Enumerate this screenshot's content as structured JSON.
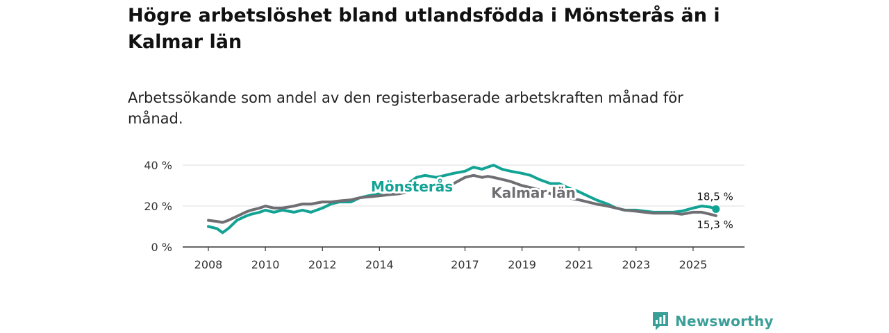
{
  "title": "Högre arbetslöshet bland utlandsfödda i Mönsterås än i Kalmar län",
  "subtitle": "Arbetssökande som andel av den registerbaserade arbetskraften månad för månad.",
  "brand": {
    "name": "Newsworthy",
    "icon": "newsworthy-logo-icon"
  },
  "colors": {
    "series_1": "#13a394",
    "series_2": "#6e6e73",
    "axis": "#333333",
    "grid": "#dddddd"
  },
  "chart_data": {
    "type": "line",
    "title": "Högre arbetslöshet bland utlandsfödda i Mönsterås än i Kalmar län",
    "subtitle": "Arbetssökande som andel av den registerbaserade arbetskraften månad för månad.",
    "xlabel": "",
    "ylabel": "",
    "xlim": [
      2008,
      2026
    ],
    "ylim": [
      0,
      40
    ],
    "y_ticks": [
      0,
      20,
      40
    ],
    "y_tick_labels": [
      "0 %",
      "20 %",
      "40 %"
    ],
    "x_ticks": [
      2008,
      2010,
      2012,
      2014,
      2017,
      2019,
      2021,
      2023,
      2025
    ],
    "x_tick_labels": [
      "2008",
      "2010",
      "2012",
      "2014",
      "2017",
      "2019",
      "2021",
      "2023",
      "2025"
    ],
    "grid": true,
    "series": [
      {
        "name": "Mönsterås",
        "label": "Mönsterås",
        "color": "#13a394",
        "end_label": "18,5 %",
        "x": [
          2008.0,
          2008.3,
          2008.5,
          2008.7,
          2009.0,
          2009.3,
          2009.5,
          2009.8,
          2010.0,
          2010.3,
          2010.6,
          2011.0,
          2011.3,
          2011.6,
          2012.0,
          2012.3,
          2012.6,
          2013.0,
          2013.3,
          2013.6,
          2014.0,
          2014.3,
          2014.7,
          2015.0,
          2015.3,
          2015.6,
          2016.0,
          2016.3,
          2016.6,
          2017.0,
          2017.3,
          2017.6,
          2017.8,
          2018.0,
          2018.3,
          2018.6,
          2019.0,
          2019.3,
          2019.6,
          2020.0,
          2020.3,
          2020.6,
          2021.0,
          2021.3,
          2021.6,
          2022.0,
          2022.3,
          2022.6,
          2023.0,
          2023.3,
          2023.6,
          2024.0,
          2024.3,
          2024.6,
          2025.0,
          2025.3,
          2025.6,
          2025.8
        ],
        "values": [
          10,
          9,
          7,
          9,
          13,
          15,
          16,
          17,
          18,
          17,
          18,
          17,
          18,
          17,
          19,
          21,
          22,
          22,
          24,
          25,
          26,
          28,
          29,
          31,
          34,
          35,
          34,
          35,
          36,
          37,
          39,
          38,
          39,
          40,
          38,
          37,
          36,
          35,
          33,
          31,
          31,
          29,
          27,
          25,
          23,
          21,
          19,
          18,
          18,
          17.5,
          17,
          17,
          17,
          17.5,
          19,
          20,
          19.5,
          18.5
        ]
      },
      {
        "name": "Kalmar län",
        "label": "Kalmar län",
        "color": "#6e6e73",
        "end_label": "15,3 %",
        "x": [
          2008.0,
          2008.3,
          2008.5,
          2008.7,
          2009.0,
          2009.3,
          2009.5,
          2009.8,
          2010.0,
          2010.3,
          2010.6,
          2011.0,
          2011.3,
          2011.6,
          2012.0,
          2012.3,
          2012.6,
          2013.0,
          2013.3,
          2013.6,
          2014.0,
          2014.3,
          2014.7,
          2015.0,
          2015.3,
          2015.6,
          2016.0,
          2016.3,
          2016.6,
          2017.0,
          2017.3,
          2017.6,
          2017.8,
          2018.0,
          2018.3,
          2018.6,
          2019.0,
          2019.3,
          2019.6,
          2020.0,
          2020.3,
          2020.6,
          2021.0,
          2021.3,
          2021.6,
          2022.0,
          2022.3,
          2022.6,
          2023.0,
          2023.3,
          2023.6,
          2024.0,
          2024.3,
          2024.6,
          2025.0,
          2025.3,
          2025.6,
          2025.8
        ],
        "values": [
          13,
          12.5,
          12,
          13,
          15,
          17,
          18,
          19,
          20,
          19,
          19,
          20,
          21,
          21,
          22,
          22,
          22.5,
          23,
          24,
          24.5,
          25,
          25.5,
          26,
          27,
          28,
          29,
          30,
          30,
          31,
          34,
          35,
          34,
          34.5,
          34,
          33,
          32,
          30,
          29,
          28,
          26,
          25,
          24,
          23,
          22,
          21,
          20,
          19,
          18,
          17.5,
          17,
          16.5,
          16.5,
          16.5,
          16,
          17,
          17,
          16,
          15.3
        ]
      }
    ]
  }
}
